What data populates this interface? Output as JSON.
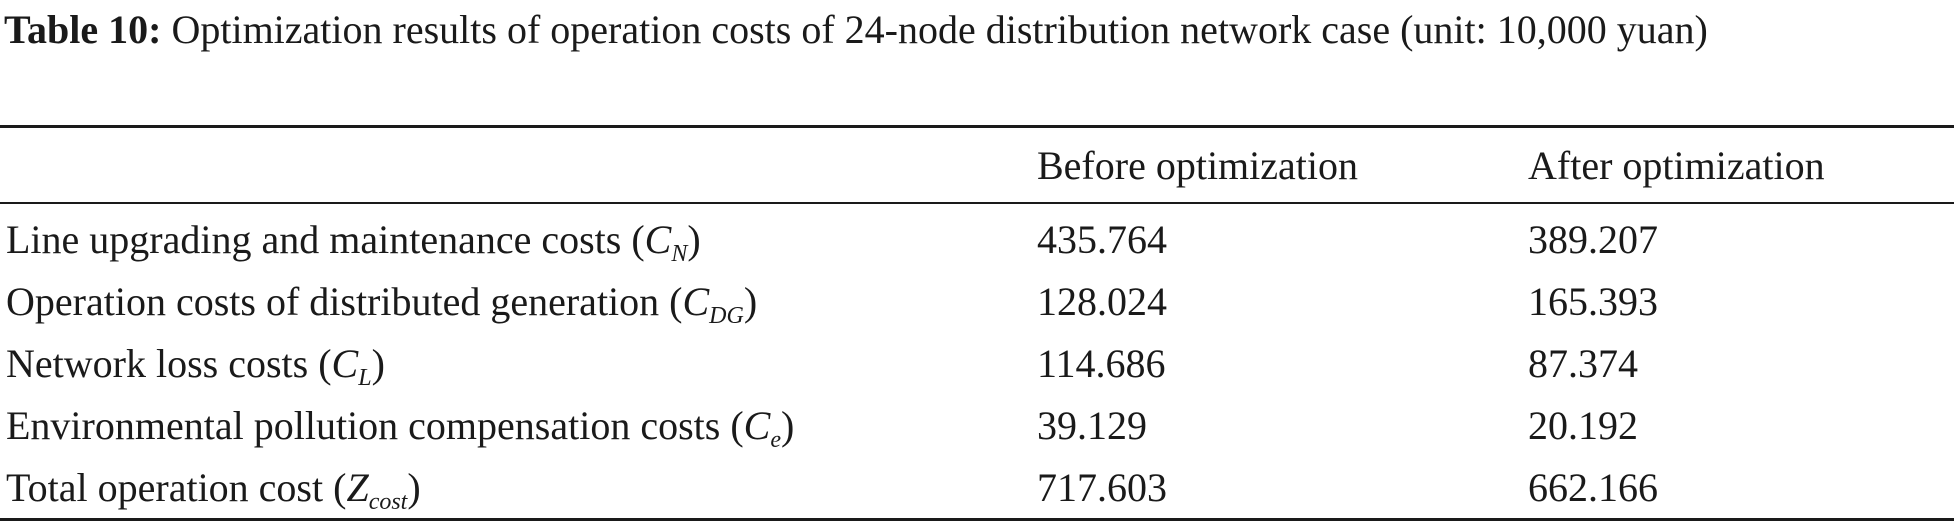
{
  "caption": {
    "label": "Table 10:",
    "text": "Optimization results of operation costs of 24-node distribution network case (unit: 10,000 yuan)"
  },
  "table": {
    "headers": [
      "",
      "Before optimization",
      "After optimization"
    ],
    "rows": [
      {
        "label": "Line upgrading and maintenance costs (",
        "symbol": "C",
        "subscript": "N",
        "before": "435.764",
        "after": "389.207"
      },
      {
        "label": "Operation costs of distributed generation (",
        "symbol": "C",
        "subscript": "DG",
        "before": "128.024",
        "after": "165.393"
      },
      {
        "label": "Network loss costs (",
        "symbol": "C",
        "subscript": "L",
        "before": "114.686",
        "after": "87.374"
      },
      {
        "label": "Environmental pollution compensation costs (",
        "symbol": "C",
        "subscript": "e",
        "before": "39.129",
        "after": "20.192"
      },
      {
        "label": "Total operation cost (",
        "symbol": "Z",
        "subscript": "cost",
        "before": "717.603",
        "after": "662.166"
      }
    ]
  }
}
